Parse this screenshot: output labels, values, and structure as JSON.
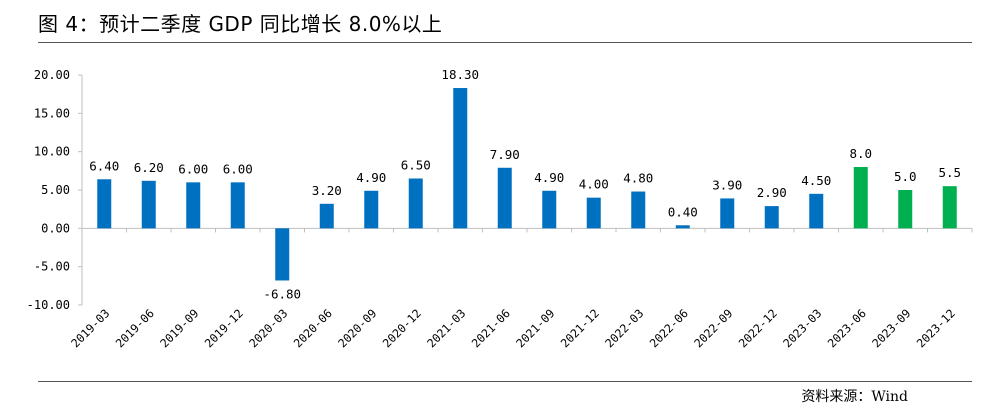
{
  "header": {
    "title": "图 4：预计二季度 GDP 同比增长 8.0%以上"
  },
  "footer": {
    "source": "资料来源：Wind"
  },
  "chart_data": {
    "type": "bar",
    "categories": [
      "2019-03",
      "2019-06",
      "2019-09",
      "2019-12",
      "2020-03",
      "2020-06",
      "2020-09",
      "2020-12",
      "2021-03",
      "2021-06",
      "2021-09",
      "2021-12",
      "2022-03",
      "2022-06",
      "2022-09",
      "2022-12",
      "2023-03",
      "2023-06",
      "2023-09",
      "2023-12"
    ],
    "values": [
      6.4,
      6.2,
      6.0,
      6.0,
      -6.8,
      3.2,
      4.9,
      6.5,
      18.3,
      7.9,
      4.9,
      4.0,
      4.8,
      0.4,
      3.9,
      2.9,
      4.5,
      8.0,
      5.0,
      5.5
    ],
    "labels": [
      "6.40",
      "6.20",
      "6.00",
      "6.00",
      "-6.80",
      "3.20",
      "4.90",
      "6.50",
      "18.30",
      "7.90",
      "4.90",
      "4.00",
      "4.80",
      "0.40",
      "3.90",
      "2.90",
      "4.50",
      "8.0",
      "5.0",
      "5.5"
    ],
    "kinds": [
      "actual",
      "actual",
      "actual",
      "actual",
      "actual",
      "actual",
      "actual",
      "actual",
      "actual",
      "actual",
      "actual",
      "actual",
      "actual",
      "actual",
      "actual",
      "actual",
      "actual",
      "forecast",
      "forecast",
      "forecast"
    ],
    "ylim": [
      -10,
      20
    ],
    "yticks": [
      -10,
      -5,
      0,
      5,
      10,
      15,
      20
    ],
    "ytick_labels": [
      "-10.00",
      "-5.00",
      "0.00",
      "5.00",
      "10.00",
      "15.00",
      "20.00"
    ],
    "colors": {
      "actual": "#0070C0",
      "forecast": "#00B050",
      "axis": "#BFBFBF"
    },
    "grid": false,
    "legend": "none"
  }
}
